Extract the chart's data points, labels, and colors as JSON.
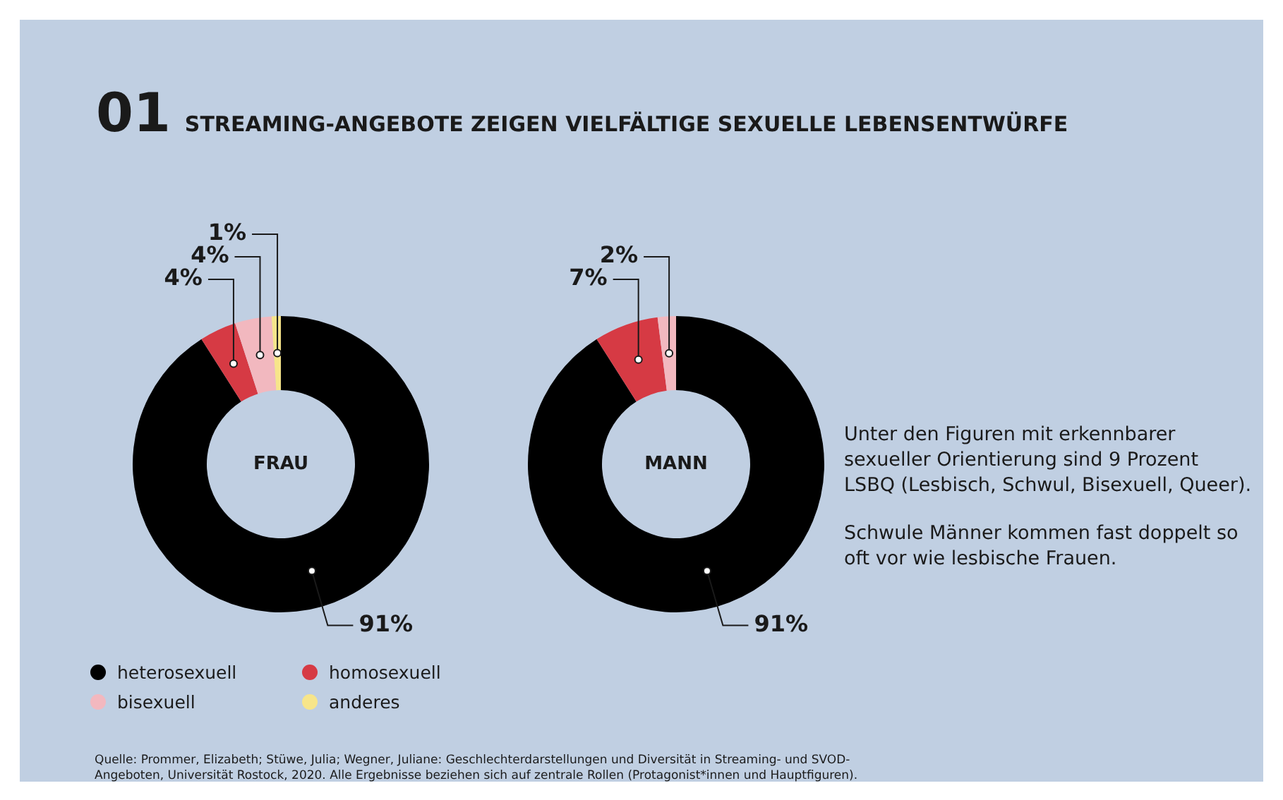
{
  "chart_data": [
    {
      "type": "donut",
      "title": "01 STREAMING-ANGEBOTE ZEIGEN VIELFÄLTIGE SEXUELLE LEBENSENTWÜRFE",
      "subtitle": "FRAU",
      "categories": [
        "heterosexuell",
        "homosexuell",
        "bisexuell",
        "anderes"
      ],
      "values": [
        91,
        4,
        4,
        1
      ],
      "value_labels": [
        "91%",
        "4%",
        "4%",
        "1%"
      ],
      "colors": [
        "#000000",
        "#d63a44",
        "#f2b8bf",
        "#f7e58a"
      ],
      "legend": "bottom left"
    },
    {
      "type": "donut",
      "subtitle": "MANN",
      "categories": [
        null,
        null,
        null
      ],
      "values": [
        91,
        7,
        2
      ],
      "value_labels": [
        "91%",
        "7%",
        "2%"
      ],
      "colors": [
        "#000000",
        "#d63a44",
        "#f2b8bf"
      ],
      "annotations": [
        "Unter den Figuren mit erkennbarer sexueller Orientierung sind 9 Prozent LSBQ (Lesbisch, Schwul, Bisexuell, Queer).",
        "Schwule Männer kommen fast doppelt so oft vor wie lesbische Frauen.",
        "Quelle: Prommer, Elizabeth; Stüwe, Julia; Wegner, Juliane: Geschlechterdarstellungen und Diversität in Streaming- und SVOD-Angeboten, Universität Rostock, 2020. Alle Ergebnisse beziehen sich auf zentrale Rollen (Protagonist*innen und Hauptfiguren)."
      ]
    }
  ]
}
